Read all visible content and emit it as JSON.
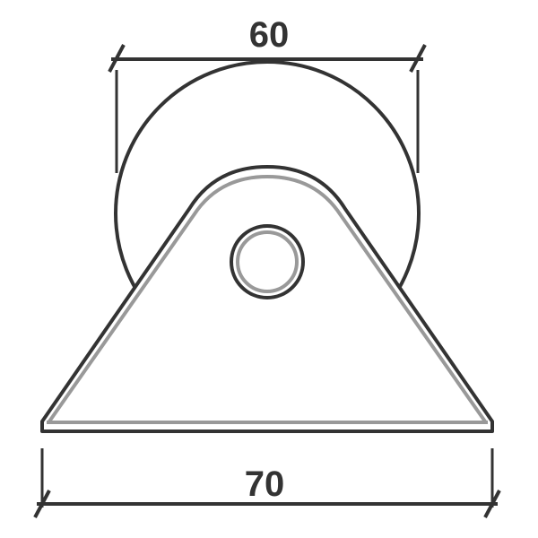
{
  "drawing": {
    "top_dimension": "60",
    "bottom_dimension": "70"
  },
  "colors": {
    "stroke": "#333333",
    "shadow": "#999999",
    "background": "#ffffff"
  }
}
